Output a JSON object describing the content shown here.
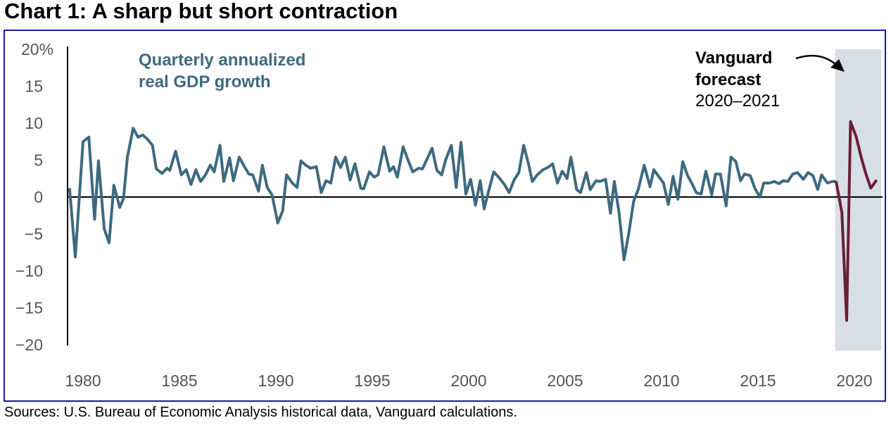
{
  "chart_data": {
    "type": "line",
    "title": "Chart 1: A sharp but short contraction",
    "xlabel": "",
    "ylabel": "",
    "xlim": [
      1979,
      2021.5
    ],
    "ylim": [
      -20,
      20
    ],
    "y_ticks": [
      {
        "v": 20,
        "label": "20%"
      },
      {
        "v": 15,
        "label": "15"
      },
      {
        "v": 10,
        "label": "10"
      },
      {
        "v": 5,
        "label": "5"
      },
      {
        "v": 0,
        "label": "0"
      },
      {
        "v": -5,
        "label": "−5"
      },
      {
        "v": -10,
        "label": "−10"
      },
      {
        "v": -15,
        "label": "−15"
      },
      {
        "v": -20,
        "label": "−20"
      }
    ],
    "x_ticks": [
      {
        "v": 1980,
        "label": "1980"
      },
      {
        "v": 1985,
        "label": "1985"
      },
      {
        "v": 1990,
        "label": "1990"
      },
      {
        "v": 1995,
        "label": "1995"
      },
      {
        "v": 2000,
        "label": "2000"
      },
      {
        "v": 2005,
        "label": "2005"
      },
      {
        "v": 2010,
        "label": "2010"
      },
      {
        "v": 2015,
        "label": "2015"
      },
      {
        "v": 2020,
        "label": "2020"
      }
    ],
    "grid": false,
    "forecast_band": {
      "x": [
        2019.0,
        2021.4
      ],
      "color": "#d8dee6"
    },
    "annotations": {
      "series_label_line1": "Quarterly annualized",
      "series_label_line2": "real GDP growth",
      "forecast_line1": "Vanguard",
      "forecast_line2": "forecast",
      "forecast_line3": "2020–2021"
    },
    "series": [
      {
        "name": "Quarterly annualized real GDP growth",
        "color": "#3e6a80",
        "points": [
          [
            1979.3,
            1.2
          ],
          [
            1979.6,
            -8.1
          ],
          [
            1980.0,
            7.5
          ],
          [
            1980.3,
            8.1
          ],
          [
            1980.6,
            -3.0
          ],
          [
            1980.8,
            4.9
          ],
          [
            1981.1,
            -4.3
          ],
          [
            1981.35,
            -6.2
          ],
          [
            1981.6,
            1.6
          ],
          [
            1981.9,
            -1.4
          ],
          [
            1982.1,
            -0.2
          ],
          [
            1982.3,
            5.4
          ],
          [
            1982.6,
            9.3
          ],
          [
            1982.85,
            8.1
          ],
          [
            1983.1,
            8.4
          ],
          [
            1983.35,
            7.8
          ],
          [
            1983.6,
            7.0
          ],
          [
            1983.8,
            3.8
          ],
          [
            1984.1,
            3.2
          ],
          [
            1984.35,
            3.9
          ],
          [
            1984.5,
            3.6
          ],
          [
            1984.8,
            6.2
          ],
          [
            1985.1,
            3.0
          ],
          [
            1985.35,
            3.7
          ],
          [
            1985.6,
            1.7
          ],
          [
            1985.85,
            3.7
          ],
          [
            1986.1,
            2.1
          ],
          [
            1986.35,
            3.0
          ],
          [
            1986.6,
            4.3
          ],
          [
            1986.8,
            3.4
          ],
          [
            1987.1,
            7.0
          ],
          [
            1987.3,
            2.1
          ],
          [
            1987.6,
            5.3
          ],
          [
            1987.8,
            2.2
          ],
          [
            1988.1,
            5.4
          ],
          [
            1988.35,
            4.2
          ],
          [
            1988.6,
            3.1
          ],
          [
            1988.8,
            3.0
          ],
          [
            1989.1,
            0.8
          ],
          [
            1989.3,
            4.3
          ],
          [
            1989.55,
            1.3
          ],
          [
            1989.8,
            0.3
          ],
          [
            1990.1,
            -3.5
          ],
          [
            1990.35,
            -1.9
          ],
          [
            1990.55,
            3.0
          ],
          [
            1990.85,
            1.9
          ],
          [
            1991.1,
            1.3
          ],
          [
            1991.3,
            4.9
          ],
          [
            1991.55,
            4.3
          ],
          [
            1991.8,
            3.9
          ],
          [
            1992.1,
            4.1
          ],
          [
            1992.35,
            0.6
          ],
          [
            1992.6,
            2.2
          ],
          [
            1992.85,
            1.9
          ],
          [
            1993.1,
            5.4
          ],
          [
            1993.35,
            4.0
          ],
          [
            1993.6,
            5.4
          ],
          [
            1993.85,
            2.3
          ],
          [
            1994.1,
            4.5
          ],
          [
            1994.4,
            1.2
          ],
          [
            1994.55,
            1.1
          ],
          [
            1994.85,
            3.4
          ],
          [
            1995.1,
            2.7
          ],
          [
            1995.3,
            3.0
          ],
          [
            1995.6,
            6.8
          ],
          [
            1995.9,
            3.5
          ],
          [
            1996.1,
            4.1
          ],
          [
            1996.3,
            2.7
          ],
          [
            1996.6,
            6.8
          ],
          [
            1996.85,
            5.0
          ],
          [
            1997.1,
            3.4
          ],
          [
            1997.4,
            3.9
          ],
          [
            1997.6,
            3.8
          ],
          [
            1997.85,
            5.2
          ],
          [
            1998.1,
            6.6
          ],
          [
            1998.35,
            3.6
          ],
          [
            1998.6,
            3.0
          ],
          [
            1998.8,
            5.0
          ],
          [
            1999.1,
            7.0
          ],
          [
            1999.35,
            1.3
          ],
          [
            1999.6,
            7.4
          ],
          [
            1999.85,
            0.4
          ],
          [
            2000.1,
            2.4
          ],
          [
            2000.35,
            -1.1
          ],
          [
            2000.6,
            2.2
          ],
          [
            2000.8,
            -1.6
          ],
          [
            2001.05,
            1.0
          ],
          [
            2001.3,
            3.4
          ],
          [
            2001.55,
            2.7
          ],
          [
            2001.85,
            1.7
          ],
          [
            2002.1,
            0.6
          ],
          [
            2002.35,
            2.3
          ],
          [
            2002.6,
            3.3
          ],
          [
            2002.85,
            7.0
          ],
          [
            2003.1,
            4.5
          ],
          [
            2003.3,
            2.1
          ],
          [
            2003.55,
            3.0
          ],
          [
            2003.85,
            3.7
          ],
          [
            2004.1,
            4.0
          ],
          [
            2004.35,
            4.5
          ],
          [
            2004.6,
            1.9
          ],
          [
            2004.85,
            3.5
          ],
          [
            2005.1,
            2.5
          ],
          [
            2005.3,
            5.4
          ],
          [
            2005.6,
            1.0
          ],
          [
            2005.8,
            0.6
          ],
          [
            2006.1,
            3.3
          ],
          [
            2006.3,
            1.0
          ],
          [
            2006.6,
            2.2
          ],
          [
            2006.8,
            2.1
          ],
          [
            2007.1,
            2.4
          ],
          [
            2007.35,
            -2.2
          ],
          [
            2007.55,
            2.1
          ],
          [
            2007.8,
            -2.2
          ],
          [
            2008.05,
            -8.5
          ],
          [
            2008.3,
            -4.9
          ],
          [
            2008.55,
            -0.6
          ],
          [
            2008.8,
            1.1
          ],
          [
            2009.1,
            4.3
          ],
          [
            2009.4,
            1.4
          ],
          [
            2009.6,
            3.7
          ],
          [
            2009.9,
            2.6
          ],
          [
            2010.1,
            1.9
          ],
          [
            2010.35,
            -1.0
          ],
          [
            2010.6,
            2.8
          ],
          [
            2010.85,
            -0.3
          ],
          [
            2011.1,
            4.8
          ],
          [
            2011.35,
            2.9
          ],
          [
            2011.6,
            1.7
          ],
          [
            2011.8,
            0.6
          ],
          [
            2012.05,
            0.4
          ],
          [
            2012.3,
            3.5
          ],
          [
            2012.6,
            0.3
          ],
          [
            2012.8,
            3.1
          ],
          [
            2013.05,
            3.1
          ],
          [
            2013.35,
            -1.2
          ],
          [
            2013.6,
            5.4
          ],
          [
            2013.85,
            4.8
          ],
          [
            2014.1,
            2.2
          ],
          [
            2014.3,
            3.1
          ],
          [
            2014.6,
            2.9
          ],
          [
            2014.85,
            1.1
          ],
          [
            2015.1,
            0.0
          ],
          [
            2015.3,
            1.9
          ],
          [
            2015.6,
            1.9
          ],
          [
            2015.85,
            2.1
          ],
          [
            2016.1,
            1.8
          ],
          [
            2016.3,
            2.2
          ],
          [
            2016.55,
            2.1
          ],
          [
            2016.8,
            3.1
          ],
          [
            2017.05,
            3.3
          ],
          [
            2017.35,
            2.4
          ],
          [
            2017.6,
            3.3
          ],
          [
            2017.85,
            2.9
          ],
          [
            2018.1,
            1.0
          ],
          [
            2018.3,
            3.0
          ],
          [
            2018.6,
            1.9
          ],
          [
            2018.85,
            2.1
          ],
          [
            2019.05,
            2.1
          ]
        ]
      },
      {
        "name": "Vanguard forecast 2020–2021",
        "color": "#6b1f35",
        "points": [
          [
            2019.05,
            2.1
          ],
          [
            2019.35,
            -2.1
          ],
          [
            2019.6,
            -16.7
          ],
          [
            2019.8,
            10.2
          ],
          [
            2020.1,
            8.1
          ],
          [
            2020.35,
            5.4
          ],
          [
            2020.6,
            3.1
          ],
          [
            2020.85,
            1.2
          ],
          [
            2021.15,
            2.3
          ]
        ]
      }
    ]
  },
  "source": "Sources: U.S. Bureau of Economic Analysis historical data, Vanguard calculations."
}
